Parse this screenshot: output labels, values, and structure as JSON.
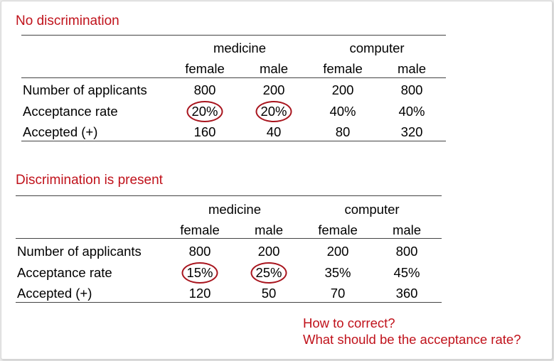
{
  "colors": {
    "accent_red": "#c0121b",
    "circle_red": "#a8141d",
    "rule": "#444444"
  },
  "table1": {
    "title": "No discrimination",
    "groups": [
      "medicine",
      "computer"
    ],
    "subheaders": [
      "female",
      "male",
      "female",
      "male"
    ],
    "rows": [
      {
        "label": "Number of applicants",
        "values": [
          "800",
          "200",
          "200",
          "800"
        ]
      },
      {
        "label": "Acceptance rate",
        "values": [
          "20%",
          "20%",
          "40%",
          "40%"
        ]
      },
      {
        "label": "Accepted (+)",
        "values": [
          "160",
          "40",
          "80",
          "320"
        ]
      }
    ]
  },
  "table2": {
    "title": "Discrimination is present",
    "groups": [
      "medicine",
      "computer"
    ],
    "subheaders": [
      "female",
      "male",
      "female",
      "male"
    ],
    "rows": [
      {
        "label": "Number of applicants",
        "values": [
          "800",
          "200",
          "200",
          "800"
        ]
      },
      {
        "label": "Acceptance rate",
        "values": [
          "15%",
          "25%",
          "35%",
          "45%"
        ]
      },
      {
        "label": "Accepted (+)",
        "values": [
          "120",
          "50",
          "70",
          "360"
        ]
      }
    ]
  },
  "notes": {
    "line1": "How to correct?",
    "line2": "What should be the acceptance rate?"
  }
}
